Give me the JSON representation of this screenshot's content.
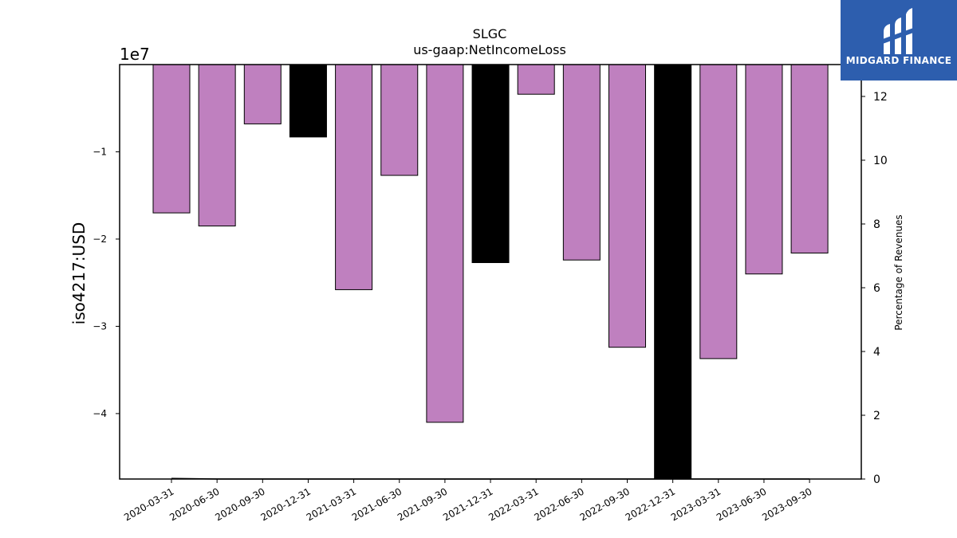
{
  "chart_data": {
    "type": "bar",
    "title": "SLGC",
    "subtitle": "us-gaap:NetIncomeLoss",
    "ylabel": "iso4217:USD",
    "y_offset_label": "1e7",
    "y2label": "Percentage of Revenues",
    "categories": [
      "2020-03-31",
      "2020-06-30",
      "2020-09-30",
      "2020-12-31",
      "2021-03-31",
      "2021-06-30",
      "2021-09-30",
      "2021-12-31",
      "2022-03-31",
      "2022-06-30",
      "2022-09-30",
      "2022-12-31",
      "2023-03-31",
      "2023-06-30",
      "2023-09-30"
    ],
    "values": [
      -17000000,
      -18500000,
      -6800000,
      -8300000,
      -25800000,
      -12700000,
      -41000000,
      -22700000,
      -3400000,
      -22400000,
      -32400000,
      -47500000,
      -33700000,
      -24000000,
      -21600000
    ],
    "bar_colors": [
      "#bf80bf",
      "#bf80bf",
      "#bf80bf",
      "#000000",
      "#bf80bf",
      "#bf80bf",
      "#bf80bf",
      "#000000",
      "#bf80bf",
      "#bf80bf",
      "#bf80bf",
      "#000000",
      "#bf80bf",
      "#bf80bf",
      "#bf80bf"
    ],
    "ylim": [
      -47500000,
      0
    ],
    "yticks": [
      -10000000,
      -20000000,
      -30000000,
      -40000000
    ],
    "ytick_labels": [
      "−1",
      "−2",
      "−3",
      "−4"
    ],
    "y2lim": [
      0,
      13
    ],
    "y2ticks": [
      0,
      2,
      4,
      6,
      8,
      10,
      12
    ],
    "y2_series": [
      0.02,
      0.0,
      0.0,
      0.0,
      0.0,
      0.0,
      0.0,
      0.0,
      0.0,
      0.0,
      0.0,
      0.0,
      0.0,
      0.0,
      0.0
    ],
    "grid": false
  },
  "logo": {
    "text": "MIDGARD FINANCE"
  }
}
